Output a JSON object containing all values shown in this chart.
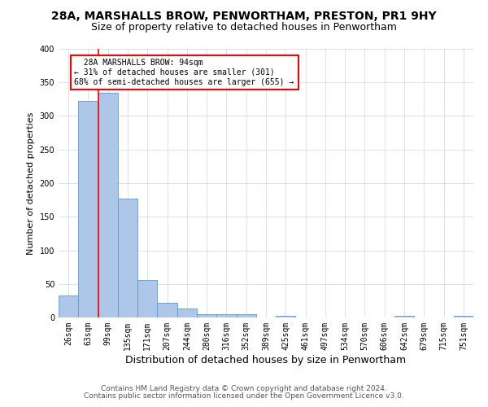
{
  "title_line1": "28A, MARSHALLS BROW, PENWORTHAM, PRESTON, PR1 9HY",
  "title_line2": "Size of property relative to detached houses in Penwortham",
  "xlabel": "Distribution of detached houses by size in Penwortham",
  "ylabel": "Number of detached properties",
  "bar_labels": [
    "26sqm",
    "63sqm",
    "99sqm",
    "135sqm",
    "171sqm",
    "207sqm",
    "244sqm",
    "280sqm",
    "316sqm",
    "352sqm",
    "389sqm",
    "425sqm",
    "461sqm",
    "497sqm",
    "534sqm",
    "570sqm",
    "606sqm",
    "642sqm",
    "679sqm",
    "715sqm",
    "751sqm"
  ],
  "bar_heights": [
    33,
    323,
    335,
    177,
    56,
    22,
    13,
    5,
    5,
    5,
    0,
    3,
    0,
    0,
    0,
    0,
    0,
    3,
    0,
    0,
    3
  ],
  "bar_color": "#aec6e8",
  "bar_edgecolor": "#5b9bd5",
  "annotation_line1": "  28A MARSHALLS BROW: 94sqm",
  "annotation_line2": "← 31% of detached houses are smaller (301)",
  "annotation_line3": "68% of semi-detached houses are larger (655) →",
  "annotation_box_color": "white",
  "annotation_box_edgecolor": "red",
  "vline_color": "red",
  "ylim": [
    0,
    400
  ],
  "yticks": [
    0,
    50,
    100,
    150,
    200,
    250,
    300,
    350,
    400
  ],
  "grid_color": "#ccd6e8",
  "footer_line1": "Contains HM Land Registry data © Crown copyright and database right 2024.",
  "footer_line2": "Contains public sector information licensed under the Open Government Licence v3.0.",
  "title_fontsize": 10,
  "subtitle_fontsize": 9,
  "xlabel_fontsize": 9,
  "ylabel_fontsize": 8,
  "tick_fontsize": 7,
  "footer_fontsize": 6.5
}
